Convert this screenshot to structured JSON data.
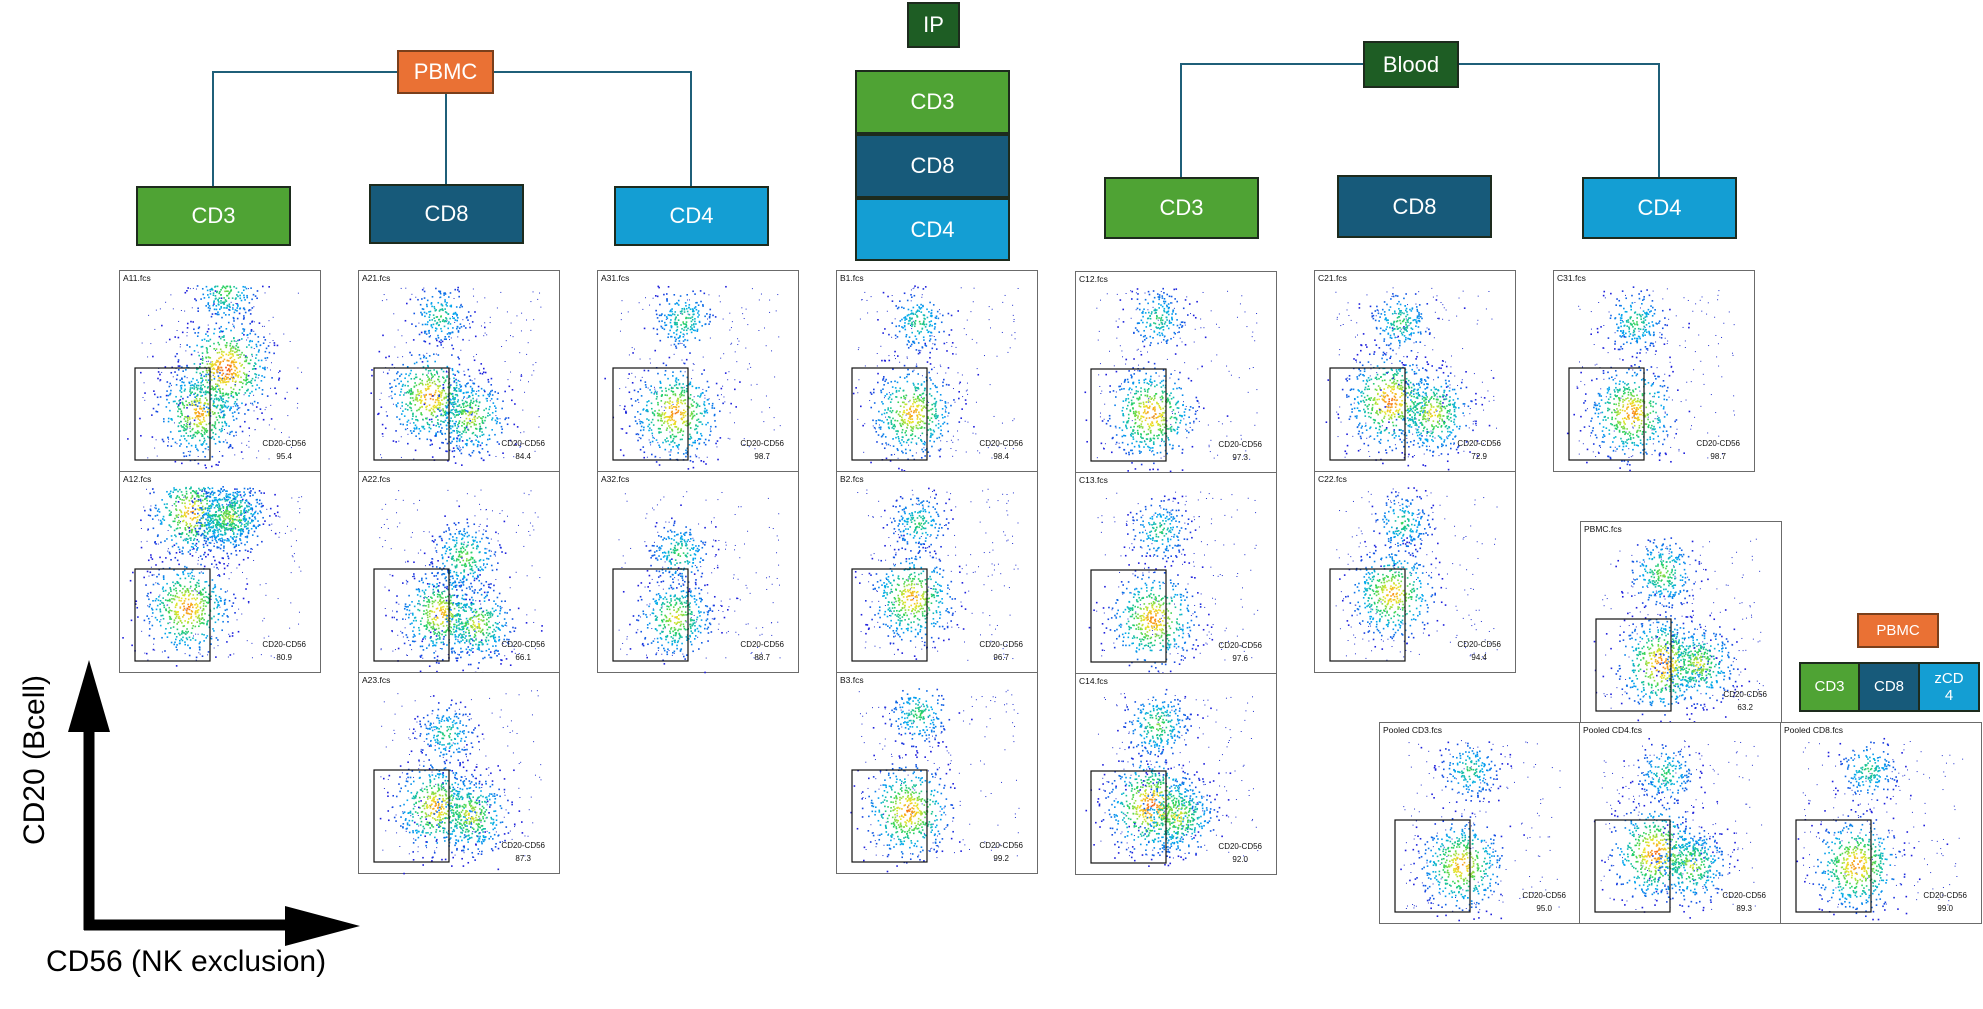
{
  "colors": {
    "pbmc": "#ea7134",
    "blood": "#1e5d24",
    "ip": "#1e5d24",
    "cd3": "#4fa334",
    "cd8": "#175a7a",
    "cd4": "#149ed3",
    "connector": "#1f5f79"
  },
  "pbmc_tree": {
    "root": "PBMC",
    "children": [
      "CD3",
      "CD8",
      "CD4"
    ]
  },
  "ip_stack": {
    "root": "IP",
    "items": [
      "CD3",
      "CD8",
      "CD4"
    ]
  },
  "blood_tree": {
    "root": "Blood",
    "children": [
      "CD3",
      "CD8",
      "CD4"
    ]
  },
  "legend": {
    "root": "PBMC",
    "items": [
      "CD3",
      "CD8",
      "zCD\n4"
    ]
  },
  "axes": {
    "y_label": "CD20 (Bcell)",
    "x_label": "CD56 (NK exclusion)"
  },
  "gate_name": "CD20-CD56",
  "plots": [
    {
      "title": "A11.fcs",
      "gate_value": "95.4"
    },
    {
      "title": "A12.fcs",
      "gate_value": "80.9"
    },
    {
      "title": "A21.fcs",
      "gate_value": "84.4"
    },
    {
      "title": "A22.fcs",
      "gate_value": "66.1"
    },
    {
      "title": "A23.fcs",
      "gate_value": "87.3"
    },
    {
      "title": "A31.fcs",
      "gate_value": "98.7"
    },
    {
      "title": "A32.fcs",
      "gate_value": "88.7"
    },
    {
      "title": "B1.fcs",
      "gate_value": "98.4"
    },
    {
      "title": "B2.fcs",
      "gate_value": "96.7"
    },
    {
      "title": "B3.fcs",
      "gate_value": "99.2"
    },
    {
      "title": "C12.fcs",
      "gate_value": "97.3"
    },
    {
      "title": "C13.fcs",
      "gate_value": "97.6"
    },
    {
      "title": "C14.fcs",
      "gate_value": "92.0"
    },
    {
      "title": "C21.fcs",
      "gate_value": "72.9"
    },
    {
      "title": "C22.fcs",
      "gate_value": "94.4"
    },
    {
      "title": "C31.fcs",
      "gate_value": "98.7"
    },
    {
      "title": "PBMC.fcs",
      "gate_value": "63.2"
    },
    {
      "title": "Pooled CD3.fcs",
      "gate_value": "95.0"
    },
    {
      "title": "Pooled CD4.fcs",
      "gate_value": "89.3"
    },
    {
      "title": "Pooled CD8.fcs",
      "gate_value": "99.0"
    }
  ]
}
